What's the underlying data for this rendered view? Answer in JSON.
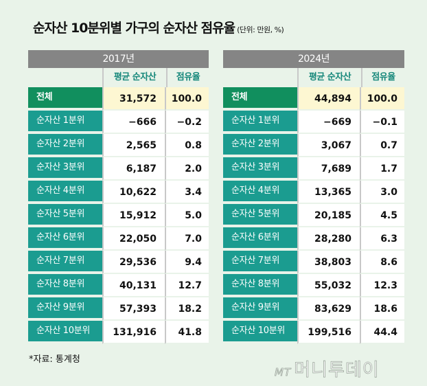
{
  "title": "순자산 10분위별 가구의 순자산 점유율",
  "unit": "(단위: 만원, %)",
  "columns": {
    "avg": "평균 순자산",
    "share": "점유율"
  },
  "tables": [
    {
      "year": "2017년",
      "rows": [
        {
          "label": "전체",
          "avg": "31,572",
          "share": "100.0"
        },
        {
          "label": "순자산 1분위",
          "avg": "−666",
          "share": "−0.2"
        },
        {
          "label": "순자산 2분위",
          "avg": "2,565",
          "share": "0.8"
        },
        {
          "label": "순자산 3분위",
          "avg": "6,187",
          "share": "2.0"
        },
        {
          "label": "순자산 4분위",
          "avg": "10,622",
          "share": "3.4"
        },
        {
          "label": "순자산 5분위",
          "avg": "15,912",
          "share": "5.0"
        },
        {
          "label": "순자산 6분위",
          "avg": "22,050",
          "share": "7.0"
        },
        {
          "label": "순자산 7분위",
          "avg": "29,536",
          "share": "9.4"
        },
        {
          "label": "순자산 8분위",
          "avg": "40,131",
          "share": "12.7"
        },
        {
          "label": "순자산 9분위",
          "avg": "57,393",
          "share": "18.2"
        },
        {
          "label": "순자산 10분위",
          "avg": "131,916",
          "share": "41.8"
        }
      ]
    },
    {
      "year": "2024년",
      "rows": [
        {
          "label": "전체",
          "avg": "44,894",
          "share": "100.0"
        },
        {
          "label": "순자산 1분위",
          "avg": "−669",
          "share": "−0.1"
        },
        {
          "label": "순자산 2분위",
          "avg": "3,067",
          "share": "0.7"
        },
        {
          "label": "순자산 3분위",
          "avg": "7,689",
          "share": "1.7"
        },
        {
          "label": "순자산 4분위",
          "avg": "13,365",
          "share": "3.0"
        },
        {
          "label": "순자산 5분위",
          "avg": "20,185",
          "share": "4.5"
        },
        {
          "label": "순자산 6분위",
          "avg": "28,280",
          "share": "6.3"
        },
        {
          "label": "순자산 7분위",
          "avg": "38,803",
          "share": "8.6"
        },
        {
          "label": "순자산 8분위",
          "avg": "55,032",
          "share": "12.3"
        },
        {
          "label": "순자산 9분위",
          "avg": "83,629",
          "share": "18.6"
        },
        {
          "label": "순자산 10분위",
          "avg": "199,516",
          "share": "44.4"
        }
      ]
    }
  ],
  "source": "*자료: 통계청",
  "logo": {
    "mark": "MT",
    "text": "머니투데이"
  },
  "colors": {
    "background": "#e9f3e9",
    "year_header": "#858585",
    "total_label": "#118f5e",
    "decile_label": "#1b9c90",
    "total_cells": "#fdf7d2",
    "subheader_text": "#15877a"
  }
}
